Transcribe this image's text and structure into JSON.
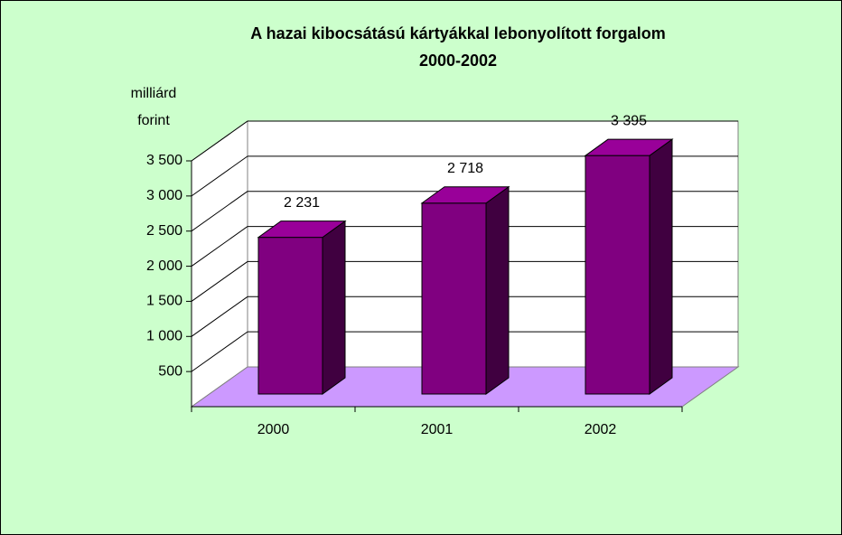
{
  "chart_data": {
    "type": "bar3d",
    "title": "A hazai kibocsátású kártyákkal lebonyolított forgalom",
    "subtitle": "2000-2002",
    "ylabel": [
      "milliárd",
      "forint"
    ],
    "categories": [
      "2000",
      "2001",
      "2002"
    ],
    "values": [
      2231,
      2718,
      3395
    ],
    "value_labels": [
      "2 231",
      "2 718",
      "3 395"
    ],
    "ylim": [
      0,
      3500
    ],
    "yticks": [
      500,
      {
        "value": 1000,
        "label": "1 000"
      },
      {
        "value": 1500,
        "label": "1 500"
      },
      {
        "value": 2000,
        "label": "2 000"
      },
      {
        "value": 2500,
        "label": "2 500"
      },
      {
        "value": 3000,
        "label": "3 000"
      },
      {
        "value": 3500,
        "label": "3 500"
      }
    ],
    "color": "#800080",
    "side_color": "#400040",
    "top_color": "#990099",
    "floor_color": "#cc99ff",
    "background": "#ccffcc",
    "grid": true
  }
}
